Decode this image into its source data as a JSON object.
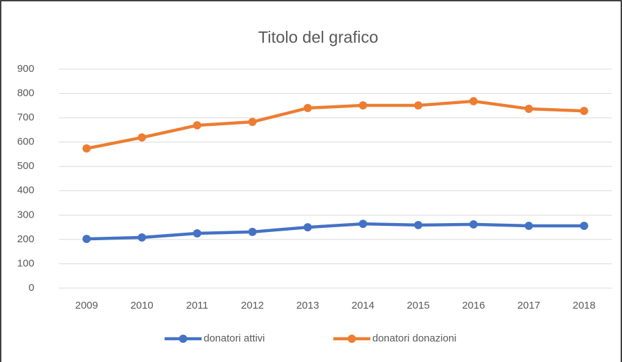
{
  "chart_data": {
    "type": "line",
    "title": "Titolo del grafico",
    "categories": [
      "2009",
      "2010",
      "2011",
      "2012",
      "2013",
      "2014",
      "2015",
      "2016",
      "2017",
      "2018"
    ],
    "series": [
      {
        "name": "donatori attivi",
        "color": "#4472c4",
        "values": [
          202,
          208,
          225,
          231,
          250,
          264,
          259,
          262,
          256,
          256
        ]
      },
      {
        "name": "donatori donazioni",
        "color": "#ed7d31",
        "values": [
          574,
          619,
          669,
          683,
          740,
          751,
          751,
          768,
          737,
          728
        ]
      }
    ],
    "ylim": [
      0,
      900
    ],
    "yticks": [
      0,
      100,
      200,
      300,
      400,
      500,
      600,
      700,
      800,
      900
    ],
    "grid": true,
    "legend": "bottom"
  }
}
